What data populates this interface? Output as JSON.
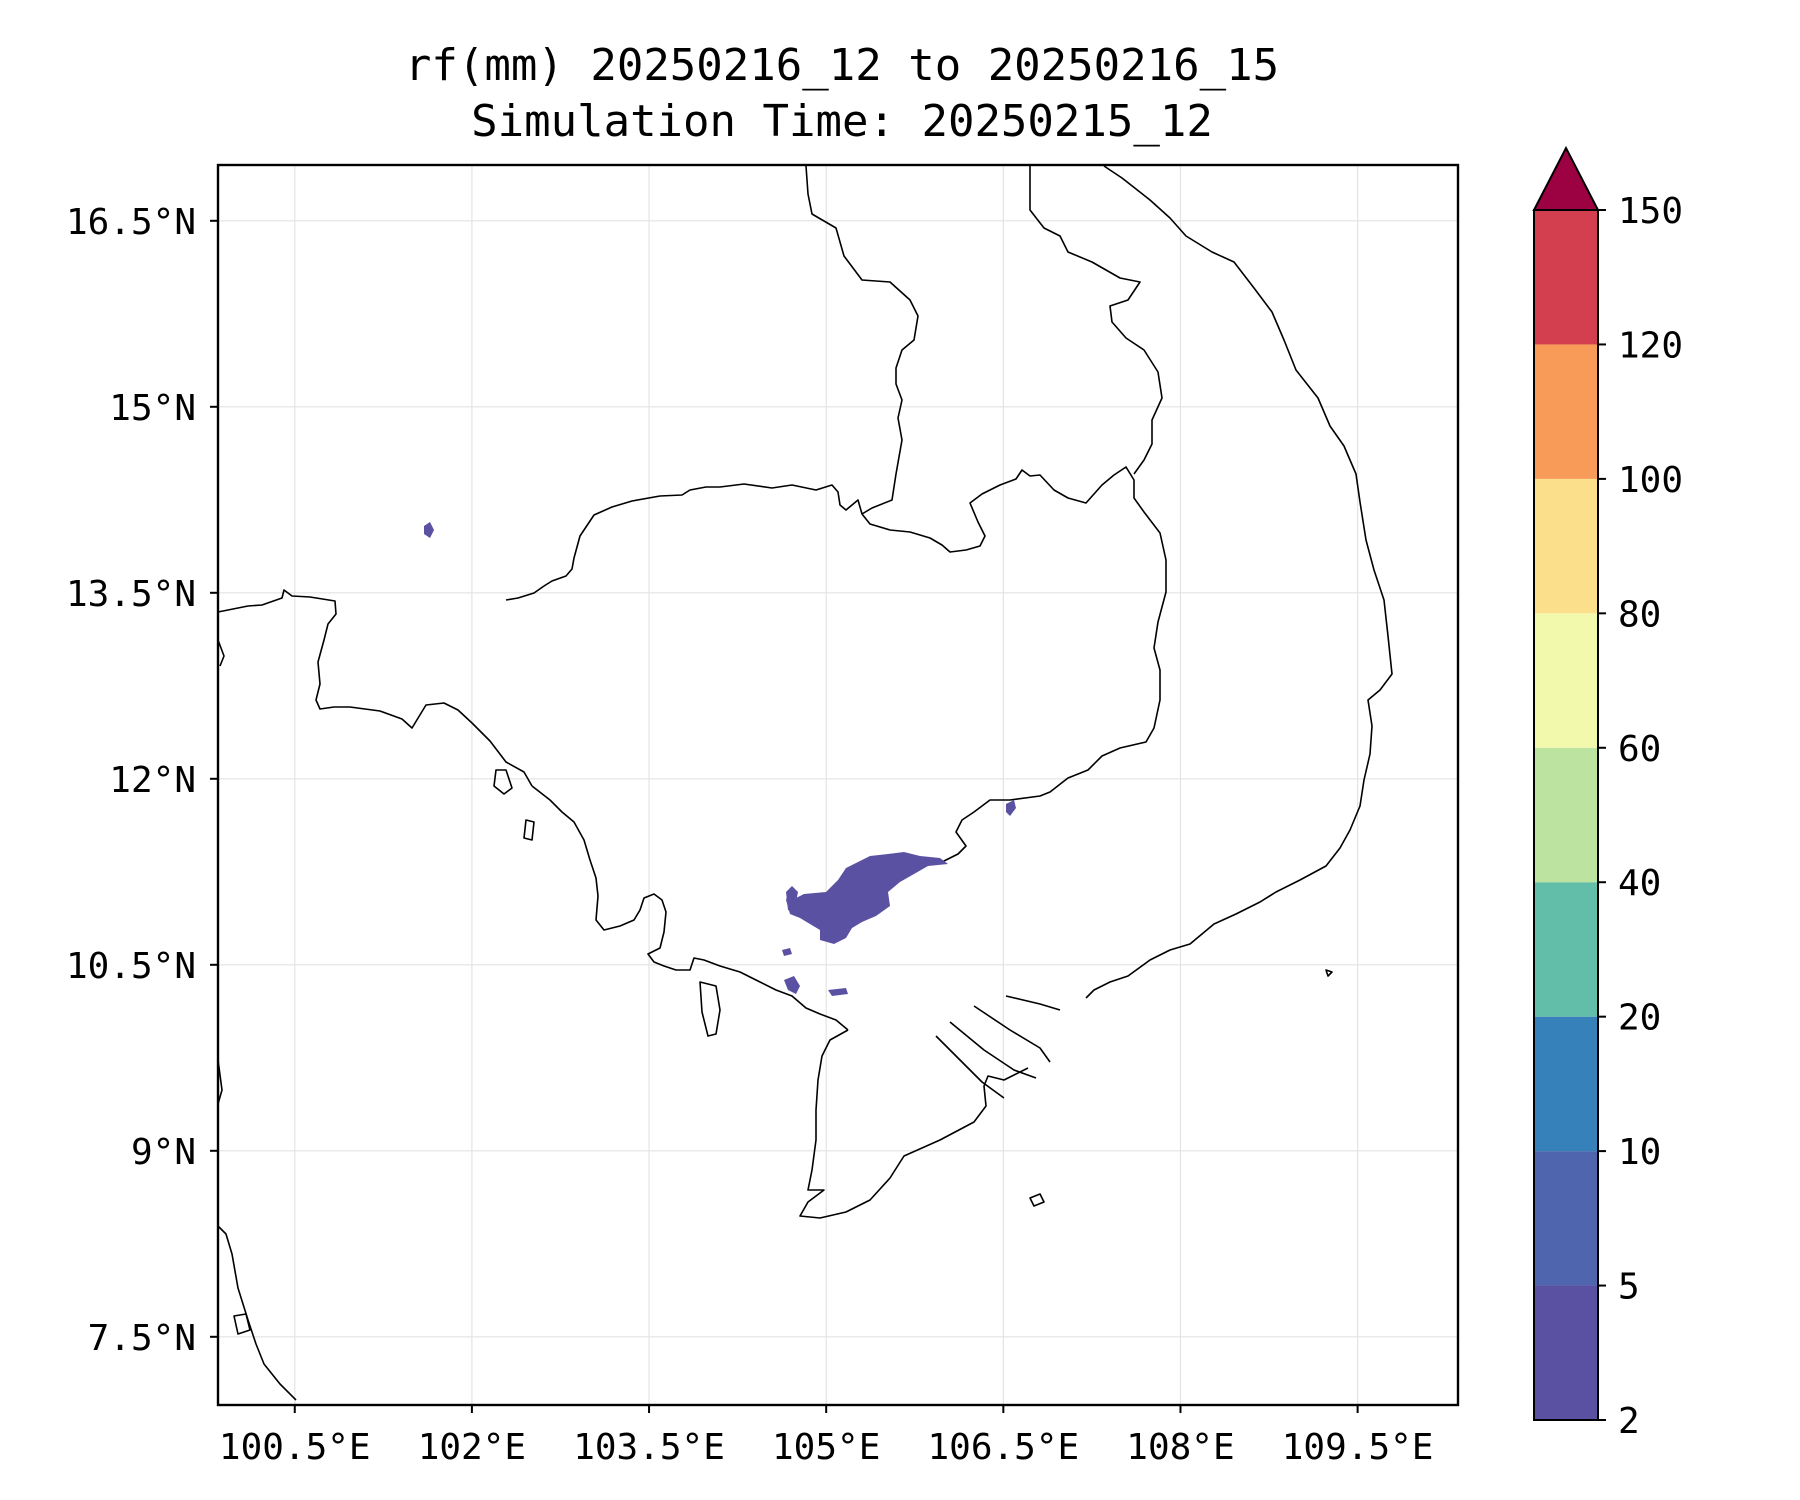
{
  "title": {
    "line1": "rf(mm) 20250216_12 to 20250216_15",
    "line2": "Simulation Time: 20250215_12"
  },
  "map": {
    "projection": "PlateCarree",
    "lon_range": [
      99.85,
      110.35
    ],
    "lat_range": [
      6.95,
      16.95
    ],
    "gridlines": true,
    "x_ticks": [
      {
        "value": 100.5,
        "label": "100.5°E"
      },
      {
        "value": 102.0,
        "label": "102°E"
      },
      {
        "value": 103.5,
        "label": "103.5°E"
      },
      {
        "value": 105.0,
        "label": "105°E"
      },
      {
        "value": 106.5,
        "label": "106.5°E"
      },
      {
        "value": 108.0,
        "label": "108°E"
      },
      {
        "value": 109.5,
        "label": "109.5°E"
      }
    ],
    "y_ticks": [
      {
        "value": 16.5,
        "label": "16.5°N"
      },
      {
        "value": 15.0,
        "label": "15°N"
      },
      {
        "value": 13.5,
        "label": "13.5°N"
      },
      {
        "value": 12.0,
        "label": "12°N"
      },
      {
        "value": 10.5,
        "label": "10.5°N"
      },
      {
        "value": 9.0,
        "label": "9°N"
      },
      {
        "value": 7.5,
        "label": "7.5°N"
      }
    ]
  },
  "colorbar": {
    "levels": [
      "2",
      "5",
      "10",
      "20",
      "40",
      "60",
      "80",
      "100",
      "120",
      "150"
    ],
    "colors": [
      "#5b51a3",
      "#4f66ae",
      "#3781ba",
      "#63bea9",
      "#bce3a0",
      "#f2f9ad",
      "#fcdf8b",
      "#f89b58",
      "#d33f4e"
    ],
    "extend_color": "#9c0142",
    "extend": "max"
  },
  "rainfall": {
    "color": "#5b51a3",
    "level_range_mm": "2-5",
    "region": "southern Cambodia / Mekong delta, near 104.8-106.2°E, 10.4-11.6°N"
  },
  "coastline_color": "#000000"
}
